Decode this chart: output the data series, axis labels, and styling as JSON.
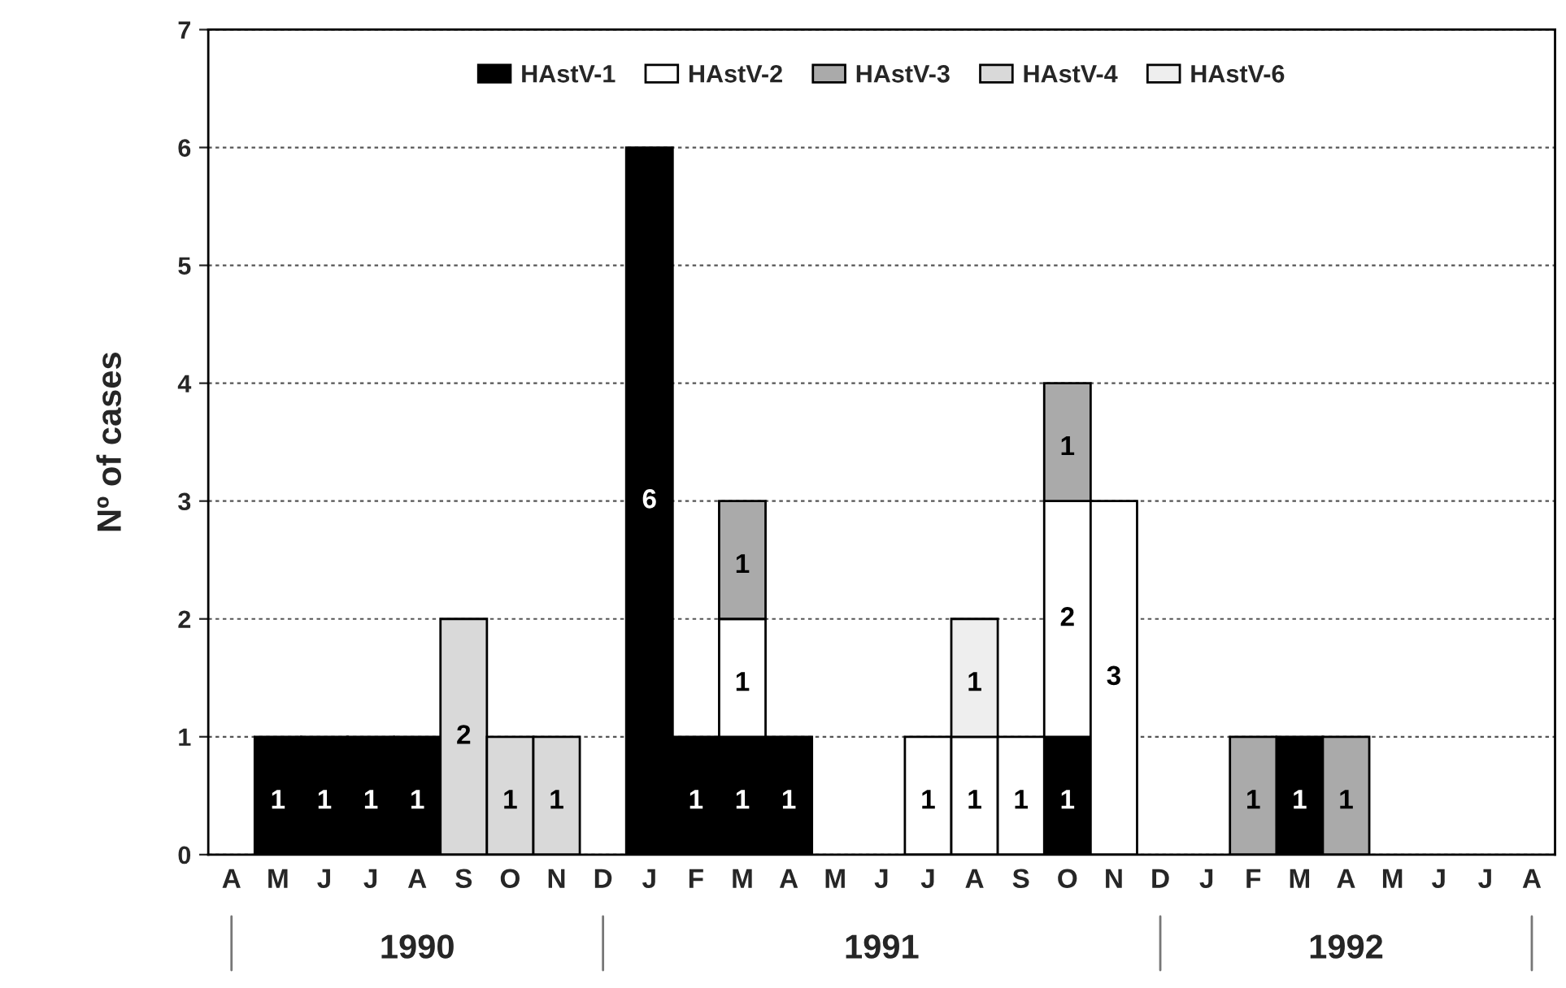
{
  "chart_data": {
    "type": "bar",
    "stacked": true,
    "ylabel": "Nº of cases",
    "categories": [
      "A",
      "M",
      "J",
      "J",
      "A",
      "S",
      "O",
      "N",
      "D",
      "J",
      "F",
      "M",
      "A",
      "M",
      "J",
      "J",
      "A",
      "S",
      "O",
      "N",
      "D",
      "J",
      "F",
      "M",
      "A",
      "M",
      "J",
      "J",
      "A"
    ],
    "series": [
      {
        "name": "HAstV-1",
        "color": "#000000",
        "values": [
          null,
          1,
          1,
          1,
          1,
          null,
          null,
          null,
          null,
          6,
          1,
          1,
          1,
          null,
          null,
          null,
          null,
          null,
          1,
          null,
          null,
          null,
          null,
          1,
          null,
          null,
          null,
          null,
          null
        ],
        "value_labels": [
          null,
          "1",
          "1",
          "1",
          "1",
          null,
          null,
          null,
          null,
          "6",
          "1",
          "1",
          "1",
          null,
          null,
          null,
          null,
          null,
          "1",
          null,
          null,
          null,
          null,
          "1",
          null,
          null,
          null,
          null,
          null
        ]
      },
      {
        "name": "HAstV-2",
        "color": "#ffffff",
        "values": [
          null,
          null,
          null,
          null,
          null,
          null,
          null,
          null,
          null,
          null,
          null,
          1,
          null,
          null,
          null,
          1,
          1,
          1,
          2,
          3,
          null,
          null,
          null,
          null,
          null,
          null,
          null,
          null,
          null
        ],
        "value_labels": [
          null,
          null,
          null,
          null,
          null,
          null,
          null,
          null,
          null,
          null,
          null,
          "1",
          null,
          null,
          null,
          "1",
          "1",
          "1",
          "2",
          "3",
          null,
          null,
          null,
          null,
          null,
          null,
          null,
          null,
          null
        ]
      },
      {
        "name": "HAstV-3",
        "color": "#aaaaaa",
        "values": [
          null,
          null,
          null,
          null,
          null,
          null,
          null,
          null,
          null,
          null,
          null,
          1,
          null,
          null,
          null,
          null,
          null,
          null,
          1,
          null,
          null,
          null,
          1,
          null,
          1,
          null,
          null,
          null,
          null
        ],
        "value_labels": [
          null,
          null,
          null,
          null,
          null,
          null,
          null,
          null,
          null,
          null,
          null,
          "1",
          null,
          null,
          null,
          null,
          null,
          null,
          "1",
          null,
          null,
          null,
          "1",
          null,
          "1",
          null,
          null,
          null,
          null
        ]
      },
      {
        "name": "HAstV-4",
        "color": "#d9d9d9",
        "values": [
          null,
          null,
          null,
          null,
          null,
          2,
          1,
          1,
          null,
          null,
          null,
          null,
          null,
          null,
          null,
          null,
          null,
          null,
          null,
          null,
          null,
          null,
          null,
          null,
          null,
          null,
          null,
          null,
          null
        ],
        "value_labels": [
          null,
          null,
          null,
          null,
          null,
          "2",
          "1",
          "1",
          null,
          null,
          null,
          null,
          null,
          null,
          null,
          null,
          null,
          null,
          null,
          null,
          null,
          null,
          null,
          null,
          null,
          null,
          null,
          null,
          null
        ]
      },
      {
        "name": "HAstV-6",
        "color": "#eeeeee",
        "values": [
          null,
          null,
          null,
          null,
          null,
          null,
          null,
          null,
          null,
          null,
          null,
          null,
          null,
          null,
          null,
          null,
          1,
          null,
          null,
          null,
          null,
          null,
          null,
          null,
          null,
          null,
          null,
          null,
          null
        ],
        "value_labels": [
          null,
          null,
          null,
          null,
          null,
          null,
          null,
          null,
          null,
          null,
          null,
          null,
          null,
          null,
          null,
          null,
          "1",
          null,
          null,
          null,
          null,
          null,
          null,
          null,
          null,
          null,
          null,
          null,
          null
        ]
      }
    ],
    "ylim": [
      0,
      7
    ],
    "yticks": [
      0,
      1,
      2,
      3,
      4,
      5,
      6,
      7
    ],
    "grid": "y",
    "legend": "top",
    "annotations": [
      "1990",
      "1991",
      "1992"
    ]
  }
}
